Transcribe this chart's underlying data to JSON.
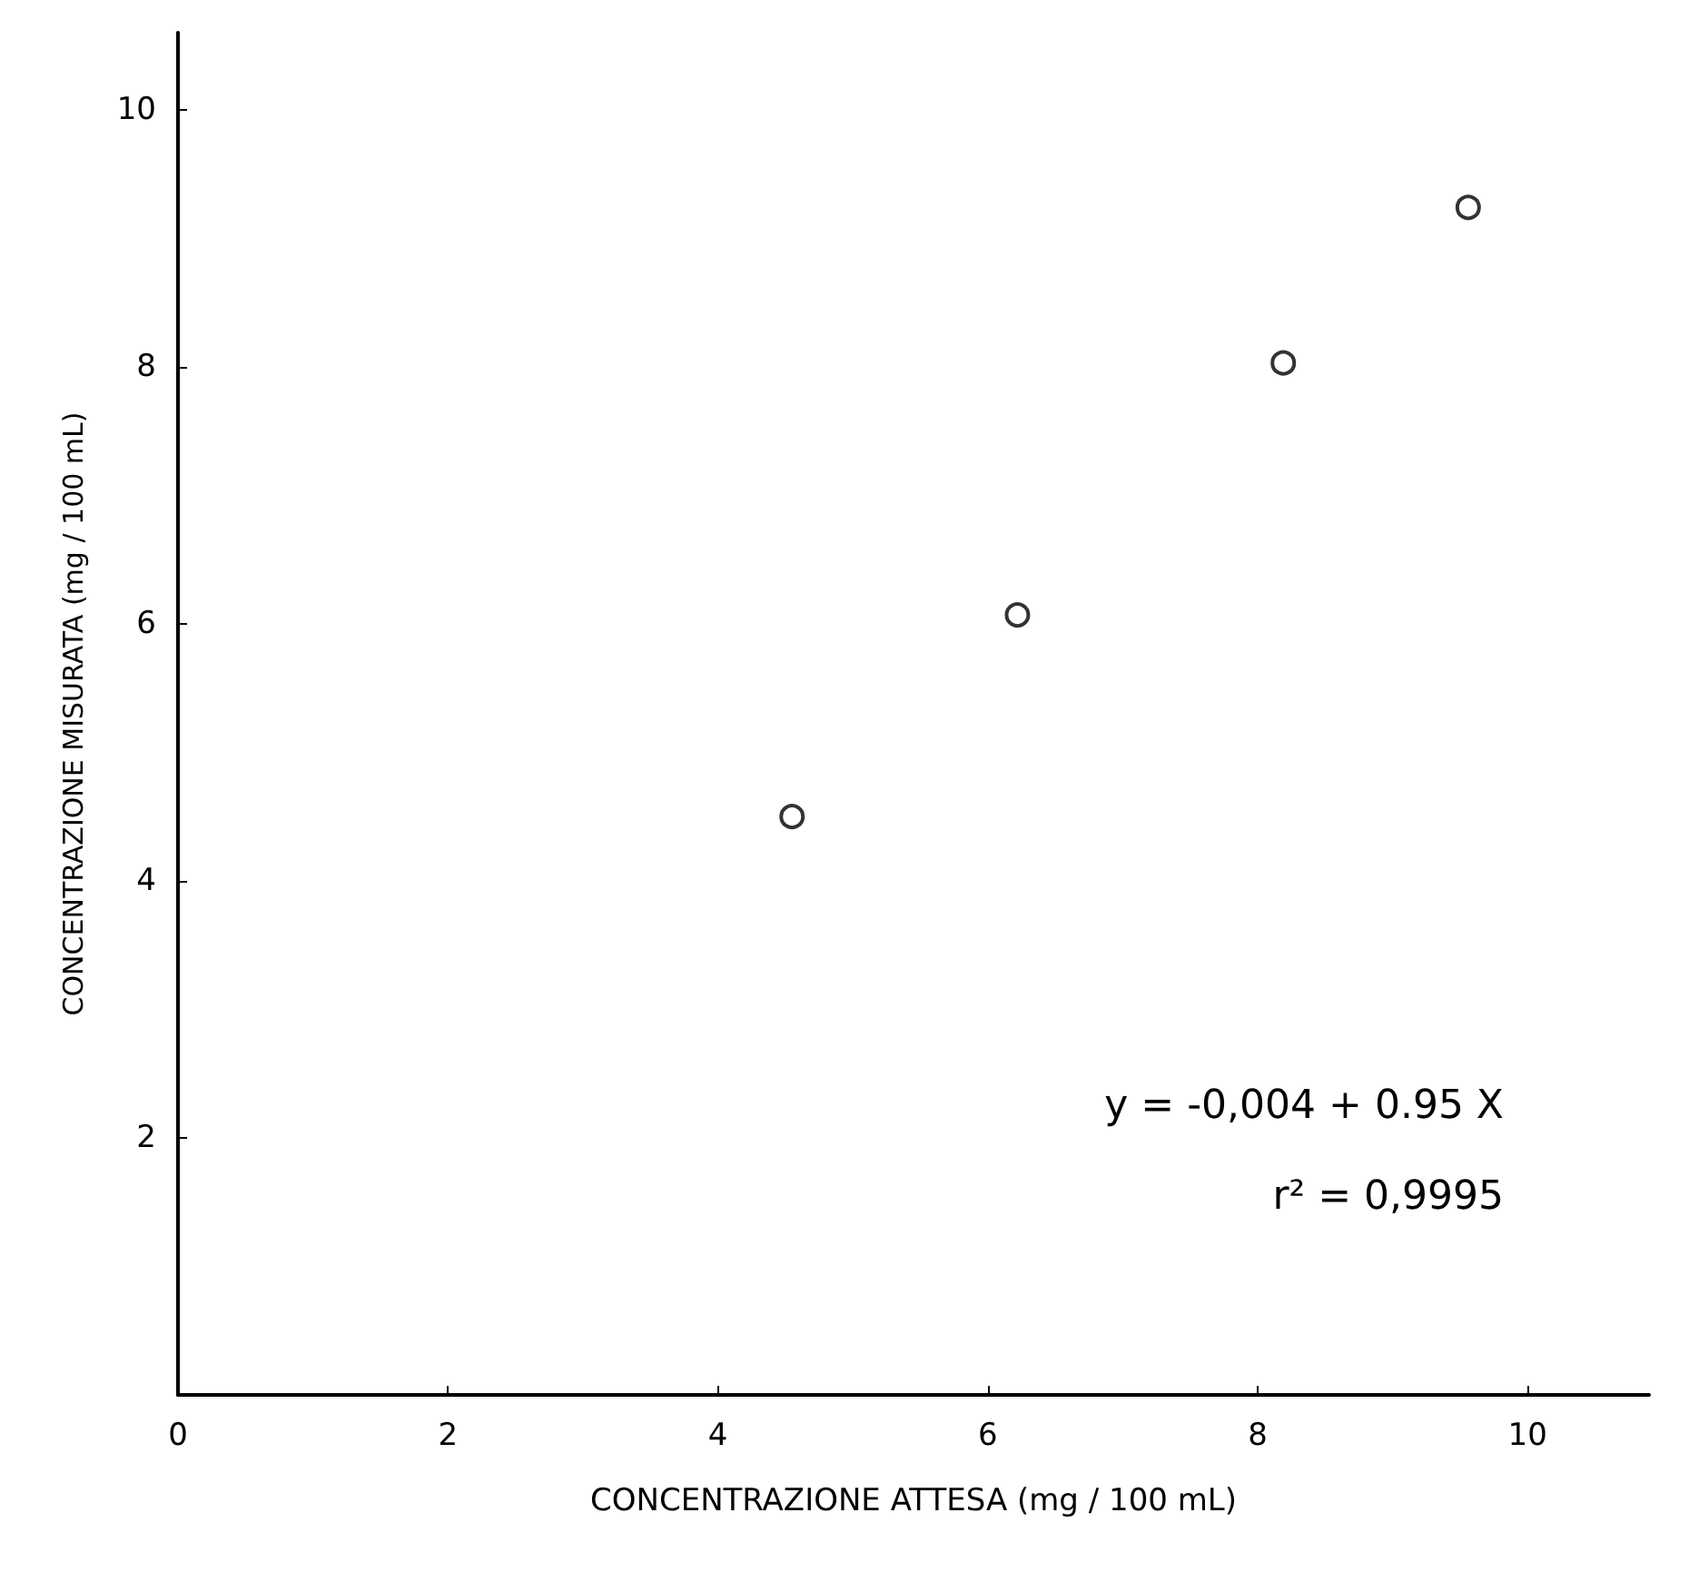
{
  "chart_data": {
    "type": "scatter",
    "xlabel": "CONCENTRAZIONE ATTESA (mg / 100 mL)",
    "ylabel": "CONCENTRAZIONE MISURATA (mg / 100 mL)",
    "x": [
      4.55,
      6.22,
      8.19,
      9.56
    ],
    "series": [
      {
        "color": "#000000",
        "values": [
          4.5,
          6.07,
          8.03,
          9.24
        ]
      }
    ],
    "xlim": [
      0,
      10.9
    ],
    "xticks": [
      0,
      2,
      4,
      6,
      8,
      10
    ],
    "ylim": [
      0,
      10.6
    ],
    "yticks": [
      2,
      4,
      6,
      8,
      10
    ],
    "marker": "circle",
    "grid": false,
    "annotations": [
      "y = -0,004 + 0.95 X",
      "r² = 0,9995"
    ]
  }
}
